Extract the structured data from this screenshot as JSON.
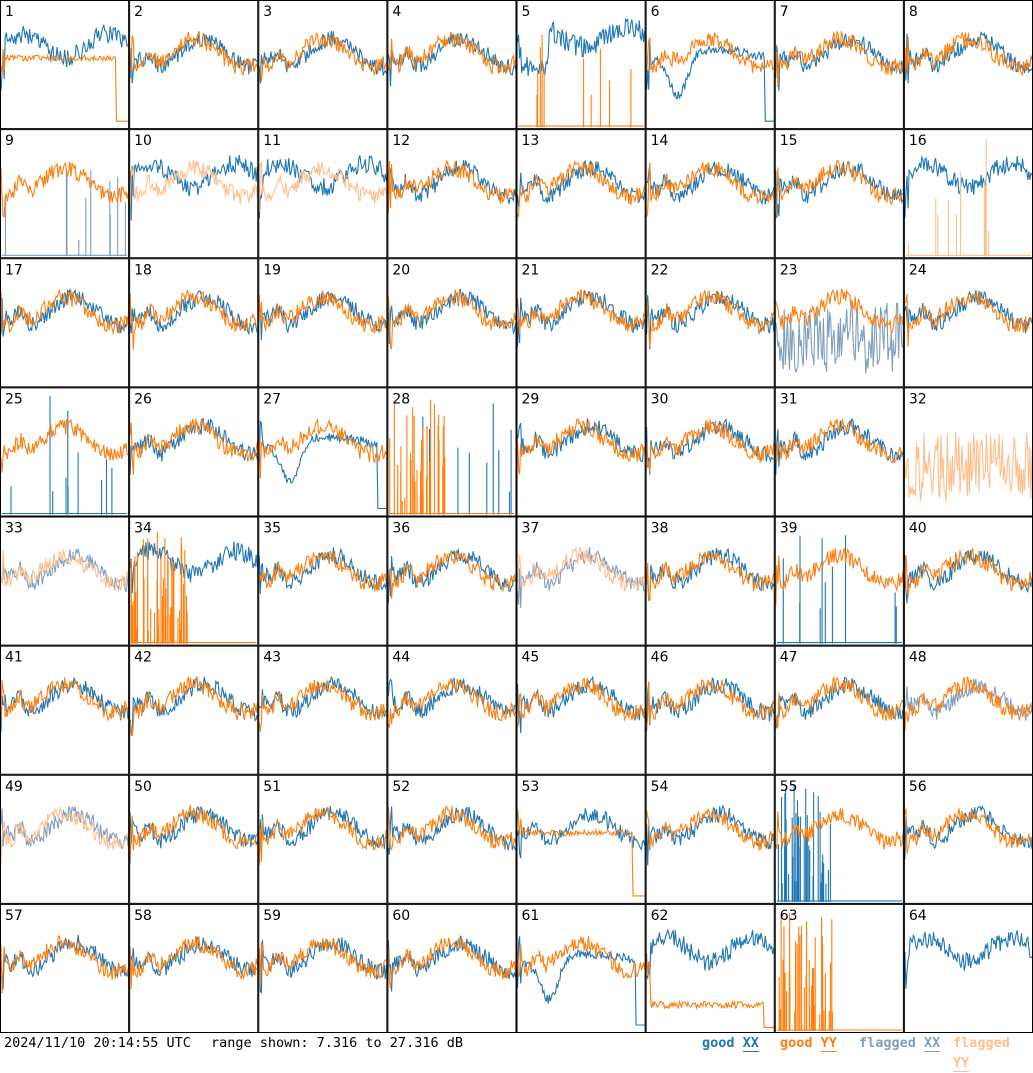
{
  "chart_data": {
    "type": "line",
    "panel_labels": [
      "1",
      "2",
      "3",
      "4",
      "5",
      "6",
      "7",
      "8",
      "9",
      "10",
      "11",
      "12",
      "13",
      "14",
      "15",
      "16",
      "17",
      "18",
      "19",
      "20",
      "21",
      "22",
      "23",
      "24",
      "25",
      "26",
      "27",
      "28",
      "29",
      "30",
      "31",
      "32",
      "33",
      "34",
      "35",
      "36",
      "37",
      "38",
      "39",
      "40",
      "41",
      "42",
      "43",
      "44",
      "45",
      "46",
      "47",
      "48",
      "49",
      "50",
      "51",
      "52",
      "53",
      "54",
      "55",
      "56",
      "57",
      "58",
      "59",
      "60",
      "61",
      "62",
      "63",
      "64"
    ],
    "ylim": [
      7.316,
      27.316
    ],
    "y_unit": "dB",
    "grid": false,
    "legend_position": "bottom-right",
    "series": [
      {
        "name": "good XX",
        "color": "#1f77b4"
      },
      {
        "name": "good YY",
        "color": "#ff7f0e"
      },
      {
        "name": "flagged XX",
        "color": "#7f9fbf"
      },
      {
        "name": "flagged YY",
        "color": "#ffc08c"
      }
    ],
    "panels": {
      "1": {
        "xx": "good",
        "yy": "good",
        "xx_shape": "high",
        "yy_shape": "shelf_drop"
      },
      "5": {
        "xx": "good",
        "yy": "good",
        "xx_shape": "high_dip",
        "yy_shape": "spikes"
      },
      "6": {
        "xx": "good",
        "yy": "good",
        "xx_shape": "hump",
        "yy_shape": "normal"
      },
      "9": {
        "xx": "flagged",
        "yy": "good",
        "xx_shape": "spikes",
        "yy_shape": "normal"
      },
      "10": {
        "xx": "good",
        "yy": "flagged",
        "xx_shape": "high",
        "yy_shape": "normal"
      },
      "11": {
        "xx": "good",
        "yy": "flagged",
        "xx_shape": "high",
        "yy_shape": "normal"
      },
      "13": {
        "xx": "good",
        "yy": "good",
        "xx_shape": "normal",
        "yy_shape": "normal"
      },
      "16": {
        "xx": "good",
        "yy": "flagged",
        "xx_shape": "high",
        "yy_shape": "spikes"
      },
      "23": {
        "xx": "flagged",
        "yy": "good",
        "xx_shape": "noisy",
        "yy_shape": "normal"
      },
      "25": {
        "xx": "good",
        "yy": "good",
        "xx_shape": "spikes",
        "yy_shape": "normal"
      },
      "27": {
        "xx": "good",
        "yy": "good",
        "xx_shape": "hump",
        "yy_shape": "normal"
      },
      "28": {
        "xx": "good",
        "yy": "good",
        "xx_shape": "spikes",
        "yy_shape": "spikes_dense"
      },
      "32": {
        "xx": "good",
        "yy": "flagged",
        "xx_shape": "none",
        "yy_shape": "noisy"
      },
      "33": {
        "xx": "flagged",
        "yy": "flagged",
        "xx_shape": "normal",
        "yy_shape": "normal"
      },
      "34": {
        "xx": "good",
        "yy": "good",
        "xx_shape": "high",
        "yy_shape": "spikes_dense"
      },
      "37": {
        "xx": "flagged",
        "yy": "flagged",
        "xx_shape": "normal",
        "yy_shape": "normal"
      },
      "39": {
        "xx": "good",
        "yy": "good",
        "xx_shape": "spikes",
        "yy_shape": "normal"
      },
      "48": {
        "xx": "flagged",
        "yy": "good",
        "xx_shape": "normal",
        "yy_shape": "normal"
      },
      "49": {
        "xx": "flagged",
        "yy": "flagged",
        "xx_shape": "normal",
        "yy_shape": "normal"
      },
      "53": {
        "xx": "good",
        "yy": "good",
        "xx_shape": "normal",
        "yy_shape": "shelf_drop"
      },
      "55": {
        "xx": "good",
        "yy": "good",
        "xx_shape": "spikes_dense",
        "yy_shape": "normal"
      },
      "61": {
        "xx": "good",
        "yy": "good",
        "xx_shape": "hump",
        "yy_shape": "normal"
      },
      "62": {
        "xx": "good",
        "yy": "good",
        "xx_shape": "high",
        "yy_shape": "shelf_low"
      },
      "63": {
        "xx": "good",
        "yy": "good",
        "xx_shape": "none",
        "yy_shape": "spikes_dense"
      },
      "64": {
        "xx": "good",
        "yy": "good",
        "xx_shape": "high",
        "yy_shape": "none"
      }
    }
  },
  "footer": {
    "timestamp": "2024/11/10 20:14:55 UTC",
    "range_text": "range shown: 7.316 to 27.316 dB",
    "legend": {
      "good_xx_prefix": "good ",
      "good_xx_pol": "XX",
      "good_yy_prefix": "good ",
      "good_yy_pol": "YY",
      "flag_xx_prefix": "flagged ",
      "flag_xx_pol": "XX",
      "flag_yy_prefix": "flagged ",
      "flag_yy_pol": "YY"
    }
  }
}
